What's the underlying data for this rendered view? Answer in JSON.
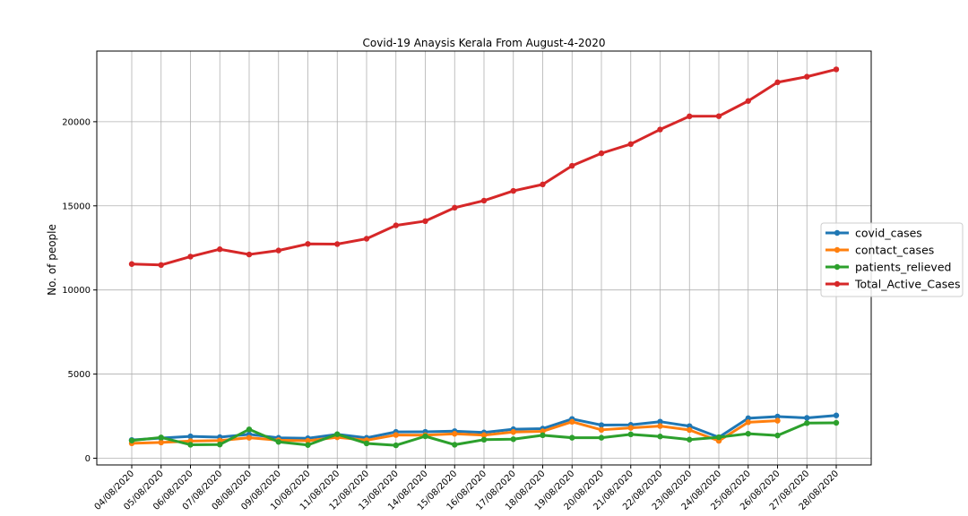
{
  "chart_data": {
    "type": "line",
    "title": "Covid-19 Anaysis Kerala From August-4-2020",
    "xlabel": "",
    "ylabel": "No. of people",
    "ylim": [
      -400,
      24200
    ],
    "yticks": [
      0,
      5000,
      10000,
      15000,
      20000
    ],
    "grid": true,
    "legend_position": "right",
    "categories": [
      "04/08/2020",
      "05/08/2020",
      "06/08/2020",
      "07/08/2020",
      "08/08/2020",
      "09/08/2020",
      "10/08/2020",
      "11/08/2020",
      "12/08/2020",
      "13/08/2020",
      "14/08/2020",
      "15/08/2020",
      "16/08/2020",
      "17/08/2020",
      "18/08/2020",
      "19/08/2020",
      "20/08/2020",
      "21/08/2020",
      "22/08/2020",
      "23/08/2020",
      "24/08/2020",
      "25/08/2020",
      "26/08/2020",
      "27/08/2020",
      "28/08/2020"
    ],
    "series": [
      {
        "name": "covid_cases",
        "color": "#1f77b4",
        "values": [
          1083,
          1195,
          1298,
          1251,
          1420,
          1211,
          1184,
          1417,
          1212,
          1564,
          1569,
          1608,
          1530,
          1725,
          1758,
          2333,
          1968,
          1983,
          2172,
          1908,
          1242,
          2375,
          2476,
          2397,
          2543
        ]
      },
      {
        "name": "contact_cases",
        "color": "#ff7f0e",
        "values": [
          887,
          935,
          1017,
          1050,
          1216,
          1068,
          1036,
          1242,
          1068,
          1380,
          1368,
          1450,
          1372,
          1557,
          1598,
          2164,
          1687,
          1803,
          1912,
          1678,
          1032,
          2137,
          2229,
          null,
          null
        ]
      },
      {
        "name": "patients_relieved",
        "color": "#2ca02c",
        "values": [
          1049,
          1234,
          800,
          814,
          1715,
          970,
          784,
          1426,
          880,
          766,
          1304,
          800,
          1101,
          1130,
          1365,
          1217,
          1217,
          1419,
          1292,
          1106,
          1247,
          1456,
          1351,
          2086,
          2102
        ]
      },
      {
        "name": "Total_Active_Cases",
        "color": "#d62728",
        "values": [
          11540,
          11484,
          11983,
          12420,
          12109,
          12347,
          12737,
          12727,
          13045,
          13839,
          14094,
          14891,
          15310,
          15890,
          16274,
          17382,
          18123,
          18673,
          19538,
          20323,
          20330,
          21232,
          22344,
          22676,
          23111
        ]
      }
    ]
  }
}
